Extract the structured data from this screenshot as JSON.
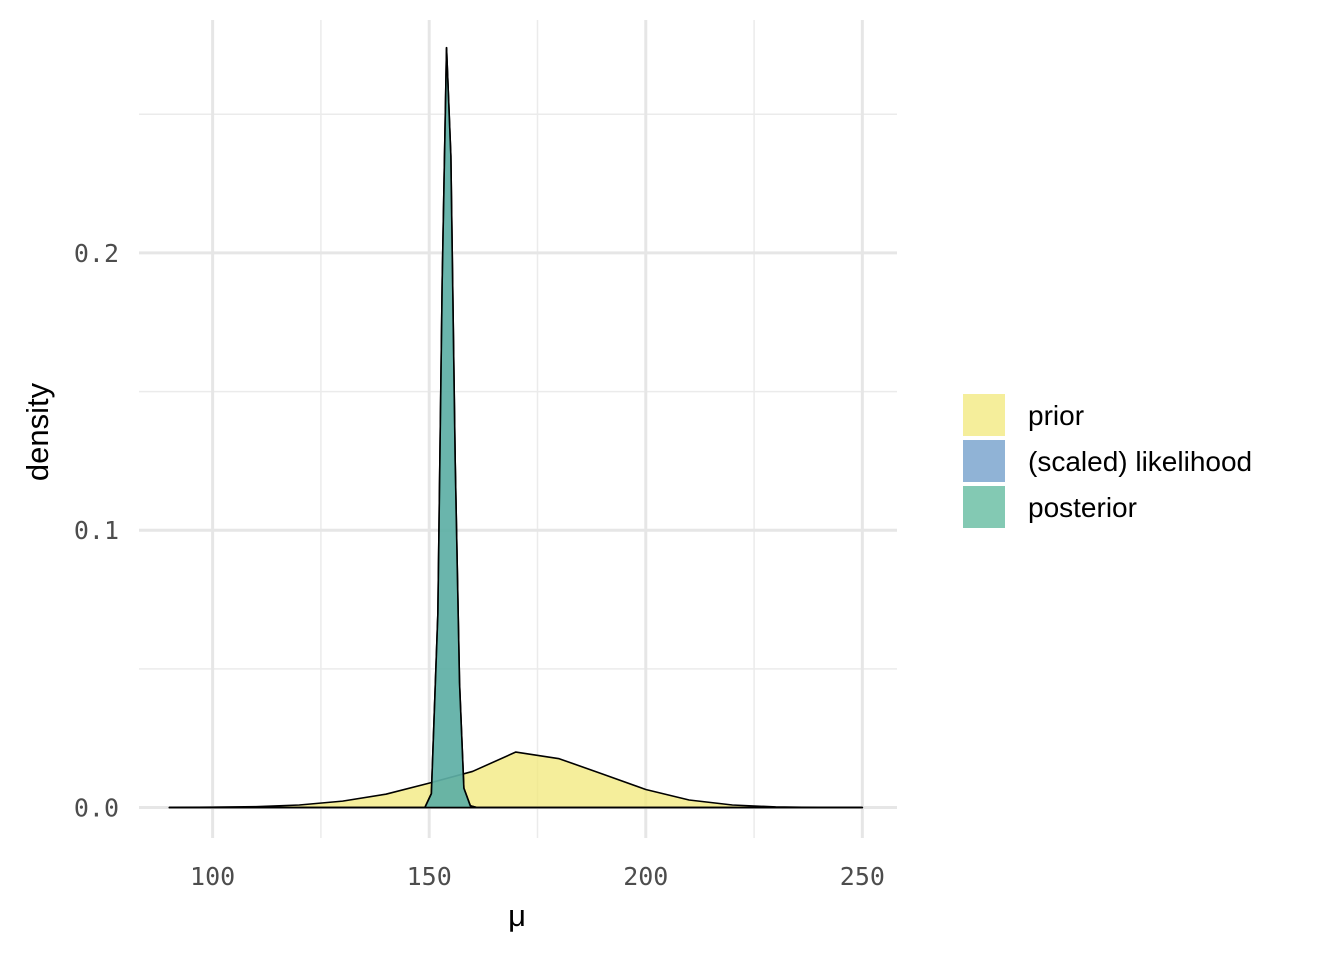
{
  "chart_data": {
    "type": "area",
    "xlabel": "μ",
    "ylabel": "density",
    "xlim": [
      83,
      258
    ],
    "ylim": [
      -0.011,
      0.284
    ],
    "x_ticks": [
      100,
      150,
      200,
      250
    ],
    "x_tick_labels": [
      "100",
      "150",
      "200",
      "250"
    ],
    "y_ticks": [
      0.0,
      0.1,
      0.2
    ],
    "y_tick_labels": [
      "0.0",
      "0.1",
      "0.2"
    ],
    "grid": true,
    "legend_position": "right",
    "series": [
      {
        "name": "prior",
        "color": "#f1e87a",
        "x": [
          90,
          100,
          110,
          120,
          130,
          140,
          150,
          160,
          170,
          180,
          190,
          200,
          210,
          220,
          230,
          240,
          250
        ],
        "y": [
          0.0,
          0.0001,
          0.0003,
          0.0009,
          0.0023,
          0.0048,
          0.0088,
          0.013,
          0.02,
          0.0176,
          0.0121,
          0.0065,
          0.0027,
          0.0009,
          0.0002,
          0.0,
          0.0
        ]
      },
      {
        "name": "(scaled) likelihood",
        "color": "#6b99c8",
        "x": [
          90,
          149,
          150.5,
          152,
          153,
          154,
          155,
          156,
          157,
          158,
          159.5,
          161,
          250
        ],
        "y": [
          0.0,
          0.0,
          0.005,
          0.07,
          0.19,
          0.274,
          0.235,
          0.125,
          0.045,
          0.007,
          0.0006,
          0.0,
          0.0
        ]
      },
      {
        "name": "posterior",
        "color": "#5ab79a",
        "x": [
          90,
          149,
          150.5,
          152,
          153,
          154,
          155,
          156,
          157,
          158,
          159.5,
          161,
          250
        ],
        "y": [
          0.0,
          0.0,
          0.005,
          0.07,
          0.19,
          0.274,
          0.235,
          0.125,
          0.045,
          0.007,
          0.0006,
          0.0,
          0.0
        ]
      }
    ]
  }
}
